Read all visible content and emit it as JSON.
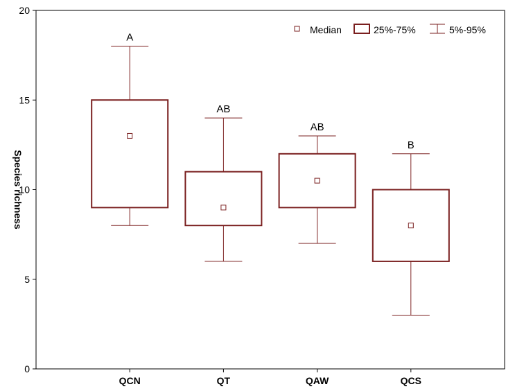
{
  "chart_data": {
    "type": "box",
    "categories": [
      "QCN",
      "QT",
      "QAW",
      "QCS"
    ],
    "boxes": [
      {
        "category": "QCN",
        "whisker_low": 8,
        "q1": 9,
        "median": 13,
        "q3": 15,
        "whisker_high": 18,
        "group_label": "A"
      },
      {
        "category": "QT",
        "whisker_low": 6,
        "q1": 8,
        "median": 9,
        "q3": 11,
        "whisker_high": 14,
        "group_label": "AB"
      },
      {
        "category": "QAW",
        "whisker_low": 7,
        "q1": 9,
        "median": 10.5,
        "q3": 12,
        "whisker_high": 13,
        "group_label": "AB"
      },
      {
        "category": "QCS",
        "whisker_low": 3,
        "q1": 6,
        "median": 8,
        "q3": 10,
        "whisker_high": 12,
        "group_label": "B"
      }
    ],
    "ylabel": "Species richness",
    "xlabel": "",
    "ylim": [
      0,
      20
    ],
    "yticks": [
      0,
      5,
      10,
      15,
      20
    ],
    "legend": {
      "position": "top-right",
      "entries": [
        "Median",
        "25%-75%",
        "5%-95%"
      ]
    },
    "grid": false,
    "color": "#7a1f1f"
  }
}
